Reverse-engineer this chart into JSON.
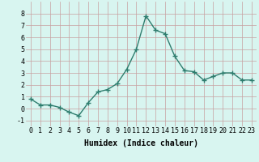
{
  "x": [
    0,
    1,
    2,
    3,
    4,
    5,
    6,
    7,
    8,
    9,
    10,
    11,
    12,
    13,
    14,
    15,
    16,
    17,
    18,
    19,
    20,
    21,
    22,
    23
  ],
  "y": [
    0.8,
    0.3,
    0.3,
    0.1,
    -0.3,
    -0.6,
    0.5,
    1.4,
    1.6,
    2.1,
    3.3,
    5.0,
    7.8,
    6.6,
    6.3,
    4.4,
    3.2,
    3.1,
    2.4,
    2.7,
    3.0,
    3.0,
    2.4,
    2.4
  ],
  "xlabel": "Humidex (Indice chaleur)",
  "xlim": [
    -0.5,
    23.5
  ],
  "ylim": [
    -1.5,
    9.0
  ],
  "yticks": [
    -1,
    0,
    1,
    2,
    3,
    4,
    5,
    6,
    7,
    8
  ],
  "xticks": [
    0,
    1,
    2,
    3,
    4,
    5,
    6,
    7,
    8,
    9,
    10,
    11,
    12,
    13,
    14,
    15,
    16,
    17,
    18,
    19,
    20,
    21,
    22,
    23
  ],
  "line_color": "#2e7d6e",
  "marker": "+",
  "marker_size": 4,
  "bg_color": "#d8f5f0",
  "grid_color": "#c8a0a0",
  "xlabel_fontsize": 7,
  "tick_fontsize": 6,
  "line_width": 1.0
}
